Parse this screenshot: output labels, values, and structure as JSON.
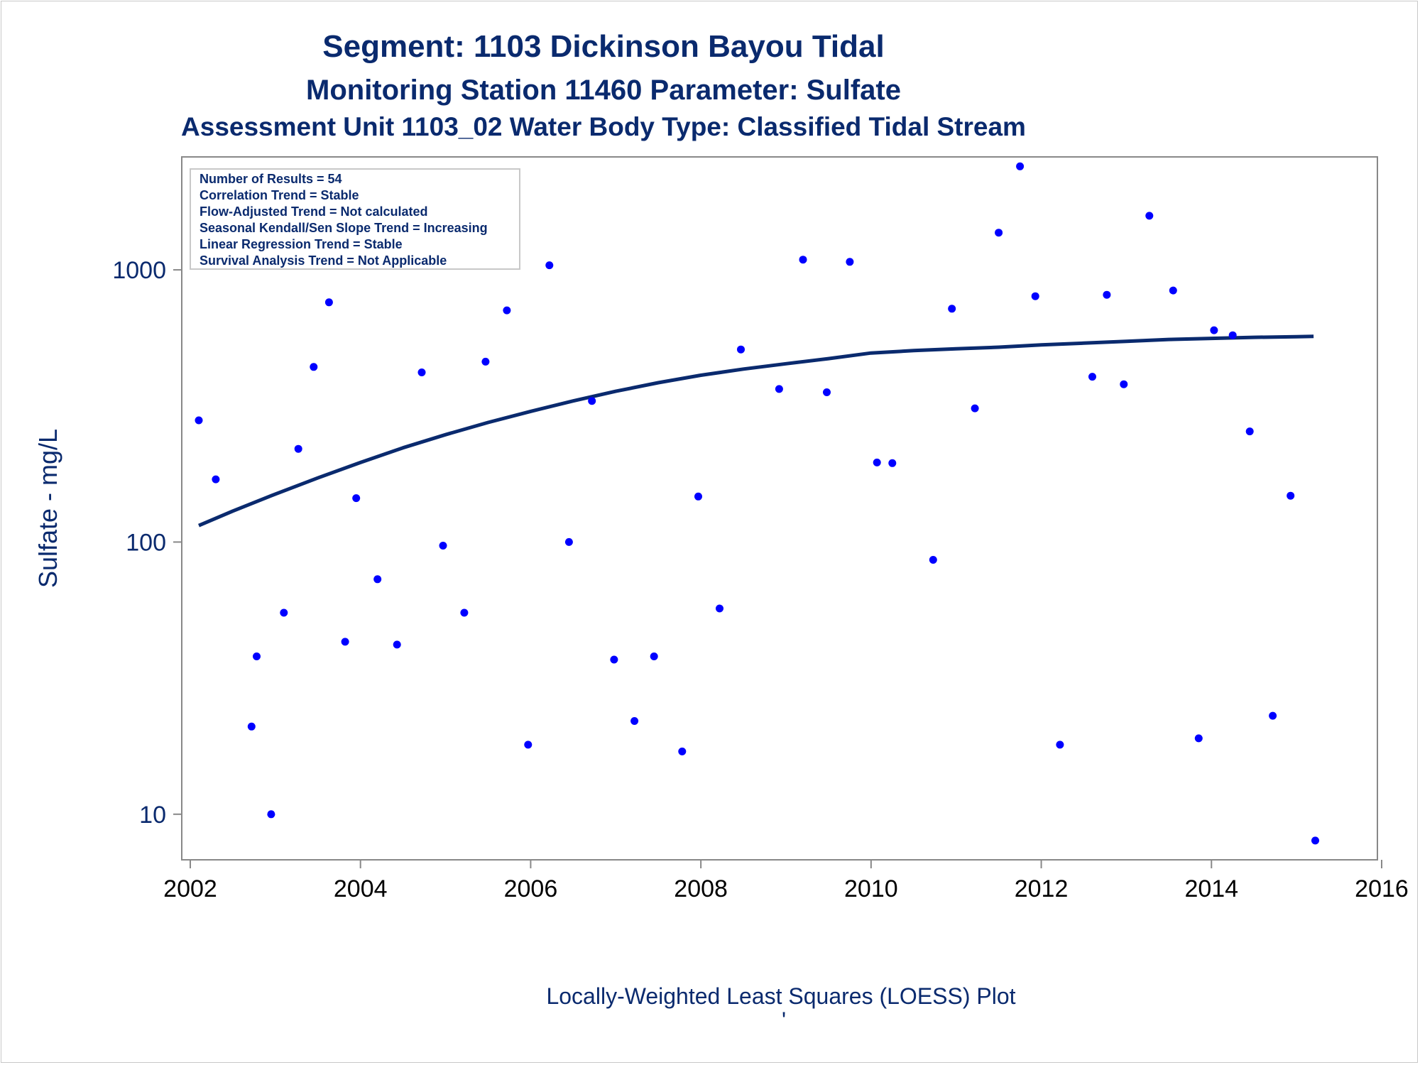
{
  "colors": {
    "title": "#0a2a6e",
    "points": "#0000ff",
    "loess": "#0a2a6e",
    "axis": "#888888"
  },
  "titles": {
    "line1": "Segment: 1103  Dickinson Bayou Tidal",
    "line2": "Monitoring Station 11460 Parameter: Sulfate",
    "line3": "Assessment Unit 1103_02   Water Body Type: Classified Tidal Stream"
  },
  "stats_box": [
    "Number of Results = 54",
    "Correlation Trend = Stable",
    "Flow-Adjusted Trend = Not calculated",
    "Seasonal Kendall/Sen Slope Trend = Increasing",
    "Linear Regression Trend = Stable",
    "Survival Analysis Trend = Not Applicable"
  ],
  "footnote": "Locally-Weighted Least Squares (LOESS) Plot",
  "footnote_mark": "'",
  "chart_data": {
    "type": "scatter",
    "ylabel": "Sulfate - mg/L",
    "xlabel": "",
    "yscale": "log",
    "xlim": [
      2001.9,
      2015.95
    ],
    "ylim": [
      6.8,
      2600
    ],
    "xticks": [
      2002,
      2004,
      2006,
      2008,
      2010,
      2012,
      2014,
      2016
    ],
    "xtick_labels": [
      "2002",
      "2004",
      "2006",
      "2008",
      "2010",
      "2012",
      "2014",
      "2016"
    ],
    "yticks": [
      10,
      100,
      1000
    ],
    "ytick_labels": [
      "10",
      "100",
      "1000"
    ],
    "points": [
      {
        "x": 2002.1,
        "y": 280
      },
      {
        "x": 2002.3,
        "y": 170
      },
      {
        "x": 2002.72,
        "y": 21
      },
      {
        "x": 2002.78,
        "y": 38
      },
      {
        "x": 2002.95,
        "y": 10
      },
      {
        "x": 2003.1,
        "y": 55
      },
      {
        "x": 2003.27,
        "y": 220
      },
      {
        "x": 2003.45,
        "y": 440
      },
      {
        "x": 2003.63,
        "y": 760
      },
      {
        "x": 2003.82,
        "y": 43
      },
      {
        "x": 2003.95,
        "y": 145
      },
      {
        "x": 2004.2,
        "y": 73
      },
      {
        "x": 2004.43,
        "y": 42
      },
      {
        "x": 2004.72,
        "y": 420
      },
      {
        "x": 2004.97,
        "y": 97
      },
      {
        "x": 2005.22,
        "y": 55
      },
      {
        "x": 2005.47,
        "y": 460
      },
      {
        "x": 2005.72,
        "y": 710
      },
      {
        "x": 2005.97,
        "y": 18
      },
      {
        "x": 2006.22,
        "y": 1040
      },
      {
        "x": 2006.45,
        "y": 100
      },
      {
        "x": 2006.72,
        "y": 330
      },
      {
        "x": 2006.98,
        "y": 37
      },
      {
        "x": 2007.22,
        "y": 22
      },
      {
        "x": 2007.45,
        "y": 38
      },
      {
        "x": 2007.78,
        "y": 17
      },
      {
        "x": 2007.97,
        "y": 147
      },
      {
        "x": 2008.22,
        "y": 57
      },
      {
        "x": 2008.47,
        "y": 510
      },
      {
        "x": 2008.92,
        "y": 365
      },
      {
        "x": 2009.2,
        "y": 1090
      },
      {
        "x": 2009.48,
        "y": 355
      },
      {
        "x": 2009.75,
        "y": 1070
      },
      {
        "x": 2010.07,
        "y": 196
      },
      {
        "x": 2010.25,
        "y": 195
      },
      {
        "x": 2010.73,
        "y": 86
      },
      {
        "x": 2010.95,
        "y": 720
      },
      {
        "x": 2011.22,
        "y": 310
      },
      {
        "x": 2011.5,
        "y": 1370
      },
      {
        "x": 2011.75,
        "y": 2400
      },
      {
        "x": 2011.93,
        "y": 800
      },
      {
        "x": 2012.22,
        "y": 18
      },
      {
        "x": 2012.6,
        "y": 405
      },
      {
        "x": 2012.77,
        "y": 810
      },
      {
        "x": 2012.97,
        "y": 380
      },
      {
        "x": 2013.27,
        "y": 1580
      },
      {
        "x": 2013.55,
        "y": 840
      },
      {
        "x": 2013.85,
        "y": 19
      },
      {
        "x": 2014.03,
        "y": 600
      },
      {
        "x": 2014.25,
        "y": 575
      },
      {
        "x": 2014.45,
        "y": 255
      },
      {
        "x": 2014.72,
        "y": 23
      },
      {
        "x": 2014.93,
        "y": 148
      },
      {
        "x": 2015.22,
        "y": 8
      }
    ],
    "loess_curve": [
      {
        "x": 2002.1,
        "y": 115
      },
      {
        "x": 2002.5,
        "y": 130
      },
      {
        "x": 2003.0,
        "y": 150
      },
      {
        "x": 2003.5,
        "y": 172
      },
      {
        "x": 2004.0,
        "y": 196
      },
      {
        "x": 2004.5,
        "y": 222
      },
      {
        "x": 2005.0,
        "y": 248
      },
      {
        "x": 2005.5,
        "y": 275
      },
      {
        "x": 2006.0,
        "y": 302
      },
      {
        "x": 2006.5,
        "y": 330
      },
      {
        "x": 2007.0,
        "y": 358
      },
      {
        "x": 2007.5,
        "y": 385
      },
      {
        "x": 2008.0,
        "y": 410
      },
      {
        "x": 2008.5,
        "y": 432
      },
      {
        "x": 2009.0,
        "y": 452
      },
      {
        "x": 2009.5,
        "y": 472
      },
      {
        "x": 2010.0,
        "y": 495
      },
      {
        "x": 2010.5,
        "y": 505
      },
      {
        "x": 2011.0,
        "y": 513
      },
      {
        "x": 2011.5,
        "y": 520
      },
      {
        "x": 2012.0,
        "y": 530
      },
      {
        "x": 2012.5,
        "y": 538
      },
      {
        "x": 2013.0,
        "y": 546
      },
      {
        "x": 2013.5,
        "y": 555
      },
      {
        "x": 2014.0,
        "y": 560
      },
      {
        "x": 2014.5,
        "y": 565
      },
      {
        "x": 2015.0,
        "y": 568
      },
      {
        "x": 2015.2,
        "y": 570
      }
    ]
  }
}
